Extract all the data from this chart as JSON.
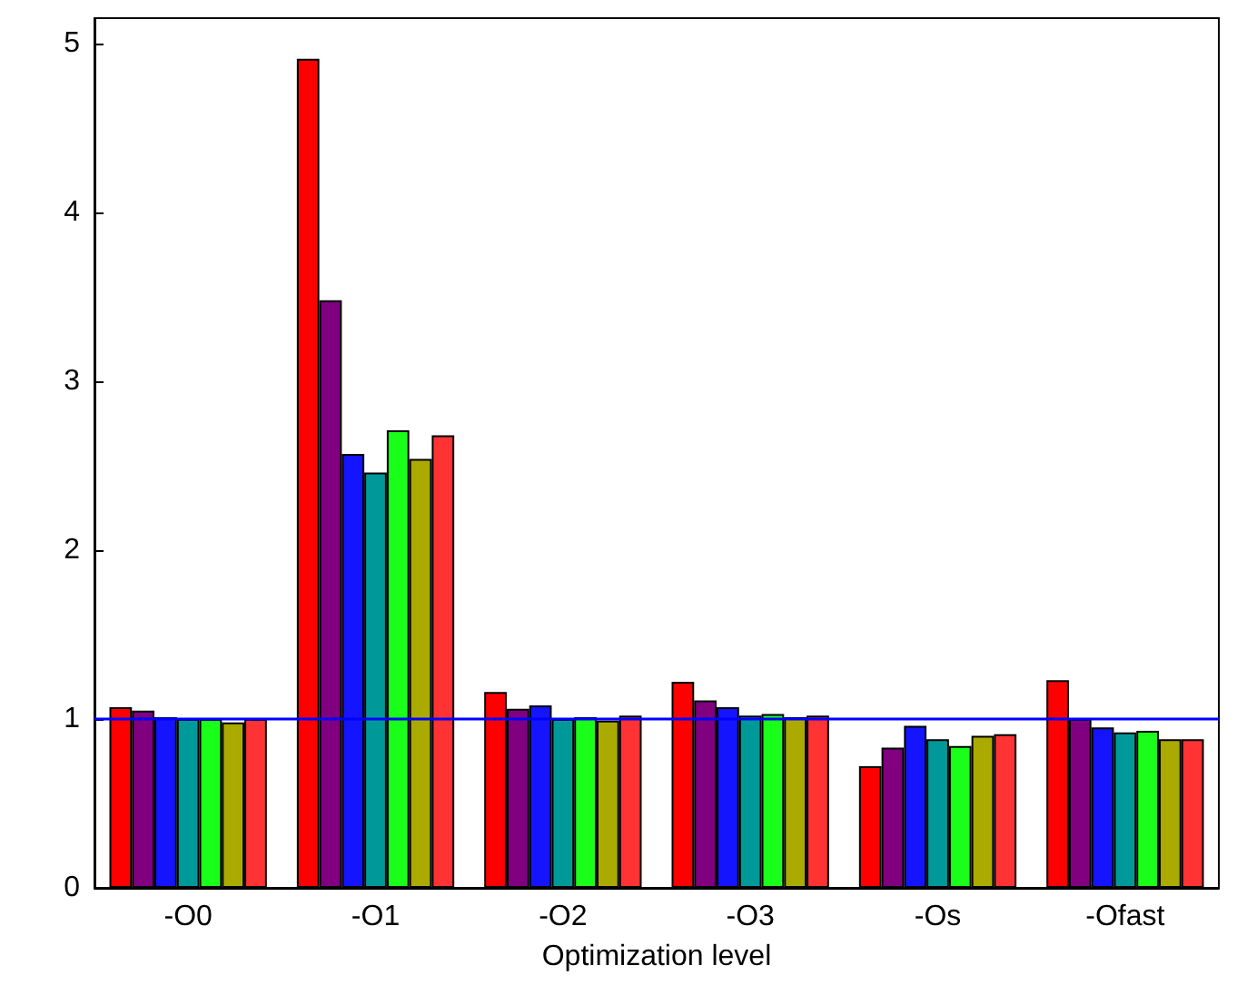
{
  "chart_data": {
    "type": "bar",
    "xlabel": "Optimization level",
    "categories": [
      "-O0",
      "-O1",
      "-O2",
      "-O3",
      "-Os",
      "-Ofast"
    ],
    "series": [
      {
        "color": "#ff0000",
        "values": [
          1.07,
          4.91,
          1.16,
          1.22,
          0.72,
          1.23
        ]
      },
      {
        "color": "#800080",
        "values": [
          1.05,
          3.48,
          1.06,
          1.11,
          0.83,
          1.0
        ]
      },
      {
        "color": "#1414ff",
        "values": [
          1.01,
          2.57,
          1.08,
          1.07,
          0.96,
          0.95
        ]
      },
      {
        "color": "#009999",
        "values": [
          1.0,
          2.46,
          1.0,
          1.02,
          0.88,
          0.92
        ]
      },
      {
        "color": "#1aff1a",
        "values": [
          1.0,
          2.71,
          1.01,
          1.03,
          0.84,
          0.93
        ]
      },
      {
        "color": "#aaaa00",
        "values": [
          0.98,
          2.54,
          0.99,
          1.01,
          0.9,
          0.88
        ]
      },
      {
        "color": "#ff3333",
        "values": [
          1.0,
          2.68,
          1.02,
          1.02,
          0.91,
          0.88
        ]
      }
    ],
    "ylim": [
      0,
      5.15
    ],
    "yticks": [
      0,
      1,
      2,
      3,
      4,
      5
    ],
    "grid": false,
    "ref_lines": [
      {
        "axis": "y",
        "value": 1,
        "color": "#0000ff"
      }
    ]
  }
}
